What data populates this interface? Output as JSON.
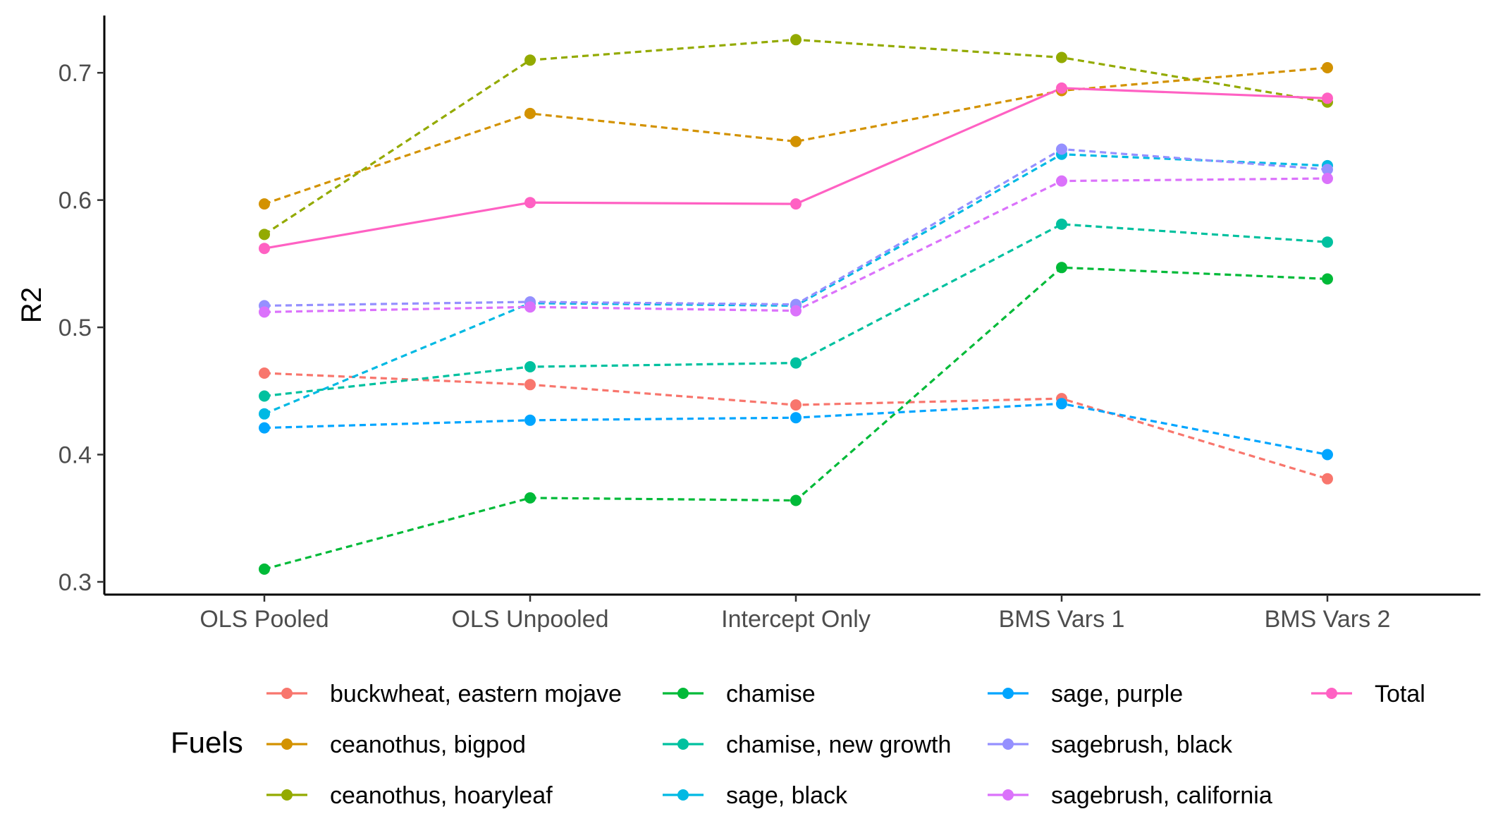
{
  "chart_data": {
    "type": "line",
    "title": "",
    "xlabel": "",
    "ylabel": "R2",
    "categories": [
      "OLS Pooled",
      "OLS Unpooled",
      "Intercept Only",
      "BMS Vars 1",
      "BMS Vars 2"
    ],
    "ylim": [
      0.29,
      0.745
    ],
    "yticks": [
      0.3,
      0.4,
      0.5,
      0.6,
      0.7
    ],
    "ytick_labels": [
      "0.3",
      "0.4",
      "0.5",
      "0.6",
      "0.7"
    ],
    "grid": false,
    "legend": {
      "title": "Fuels",
      "placement": "bottom"
    },
    "series": [
      {
        "name": "buckwheat, eastern mojave",
        "color": "#F8766D",
        "dashed": true,
        "values": [
          0.464,
          0.455,
          0.439,
          0.444,
          0.381
        ]
      },
      {
        "name": "ceanothus, bigpod",
        "color": "#D39200",
        "dashed": true,
        "values": [
          0.597,
          0.668,
          0.646,
          0.686,
          0.704
        ]
      },
      {
        "name": "ceanothus, hoaryleaf",
        "color": "#93AA00",
        "dashed": true,
        "values": [
          0.573,
          0.71,
          0.726,
          0.712,
          0.677
        ]
      },
      {
        "name": "chamise",
        "color": "#00BA38",
        "dashed": true,
        "values": [
          0.31,
          0.366,
          0.364,
          0.547,
          0.538
        ]
      },
      {
        "name": "chamise, new growth",
        "color": "#00C19F",
        "dashed": true,
        "values": [
          0.446,
          0.469,
          0.472,
          0.581,
          0.567
        ]
      },
      {
        "name": "sage, black",
        "color": "#00B9E3",
        "dashed": true,
        "values": [
          0.432,
          0.519,
          0.517,
          0.636,
          0.627
        ]
      },
      {
        "name": "sage, purple",
        "color": "#00A5FF",
        "dashed": true,
        "values": [
          0.421,
          0.427,
          0.429,
          0.44,
          0.4
        ]
      },
      {
        "name": "sagebrush, black",
        "color": "#9590FF",
        "dashed": true,
        "values": [
          0.517,
          0.52,
          0.518,
          0.64,
          0.624
        ]
      },
      {
        "name": "sagebrush, california",
        "color": "#DB72FB",
        "dashed": true,
        "values": [
          0.512,
          0.516,
          0.513,
          0.615,
          0.617
        ]
      },
      {
        "name": "Total",
        "color": "#FF61C3",
        "dashed": false,
        "values": [
          0.562,
          0.598,
          0.597,
          0.688,
          0.68
        ]
      }
    ]
  }
}
